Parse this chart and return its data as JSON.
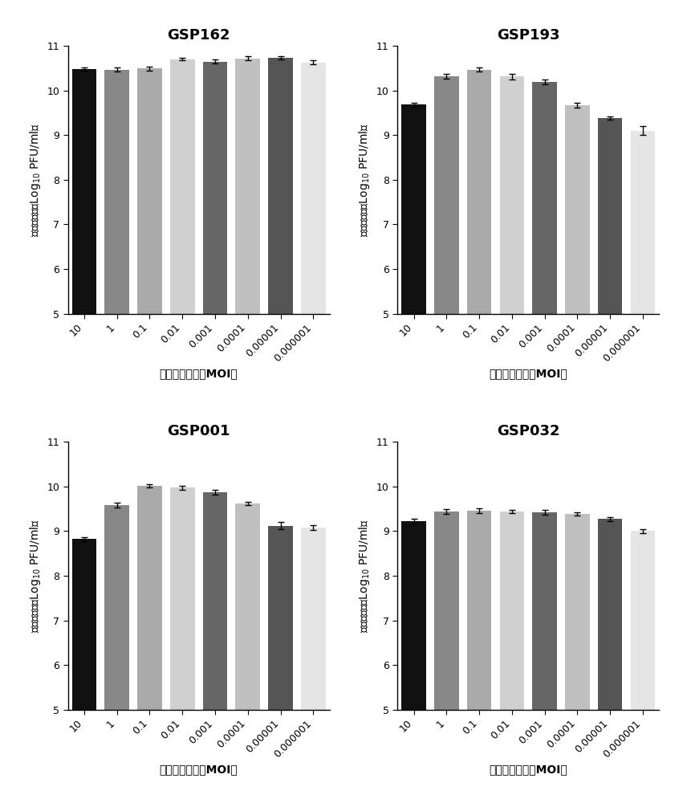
{
  "panels": [
    {
      "title": "GSP162",
      "categories": [
        "10",
        "1",
        "0.1",
        "0.01",
        "0.001",
        "0.0001",
        "0.00001",
        "0.000001"
      ],
      "values": [
        10.48,
        10.47,
        10.49,
        10.7,
        10.65,
        10.72,
        10.73,
        10.63
      ],
      "errors": [
        0.04,
        0.05,
        0.05,
        0.03,
        0.04,
        0.04,
        0.04,
        0.04
      ],
      "colors": [
        "#111111",
        "#888888",
        "#aaaaaa",
        "#d0d0d0",
        "#666666",
        "#c0c0c0",
        "#555555",
        "#e5e5e5"
      ]
    },
    {
      "title": "GSP193",
      "categories": [
        "10",
        "1",
        "0.1",
        "0.01",
        "0.001",
        "0.0001",
        "0.00001",
        "0.000001"
      ],
      "values": [
        9.68,
        10.32,
        10.47,
        10.31,
        10.19,
        9.67,
        9.38,
        9.1
      ],
      "errors": [
        0.04,
        0.05,
        0.05,
        0.06,
        0.06,
        0.05,
        0.04,
        0.1
      ],
      "colors": [
        "#111111",
        "#888888",
        "#aaaaaa",
        "#d0d0d0",
        "#666666",
        "#c0c0c0",
        "#555555",
        "#e5e5e5"
      ]
    },
    {
      "title": "GSP001",
      "categories": [
        "10",
        "1",
        "0.1",
        "0.01",
        "0.001",
        "0.0001",
        "0.00001",
        "0.000001"
      ],
      "values": [
        8.82,
        9.58,
        10.01,
        9.97,
        9.87,
        9.62,
        9.12,
        9.08
      ],
      "errors": [
        0.05,
        0.05,
        0.03,
        0.05,
        0.05,
        0.04,
        0.08,
        0.06
      ],
      "colors": [
        "#111111",
        "#888888",
        "#aaaaaa",
        "#d0d0d0",
        "#666666",
        "#c0c0c0",
        "#555555",
        "#e5e5e5"
      ]
    },
    {
      "title": "GSP032",
      "categories": [
        "10",
        "1",
        "0.1",
        "0.01",
        "0.001",
        "0.0001",
        "0.00001",
        "0.000001"
      ],
      "values": [
        9.22,
        9.44,
        9.46,
        9.44,
        9.42,
        9.38,
        9.27,
        9.0
      ],
      "errors": [
        0.05,
        0.06,
        0.05,
        0.04,
        0.05,
        0.04,
        0.05,
        0.04
      ],
      "colors": [
        "#111111",
        "#888888",
        "#aaaaaa",
        "#d0d0d0",
        "#666666",
        "#c0c0c0",
        "#555555",
        "#e5e5e5"
      ]
    }
  ],
  "ylim": [
    5,
    11
  ],
  "yticks": [
    5,
    6,
    7,
    8,
    9,
    10,
    11
  ],
  "background_color": "#ffffff",
  "bar_width": 0.75,
  "title_fontsize": 13,
  "label_fontsize": 10,
  "tick_fontsize": 9
}
